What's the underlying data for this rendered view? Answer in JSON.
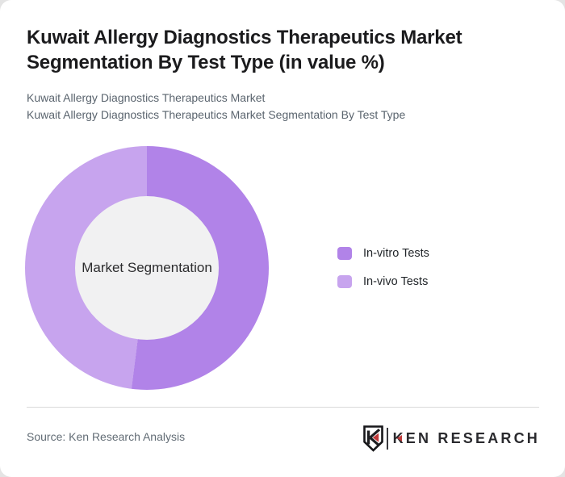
{
  "header": {
    "title": "Kuwait Allergy Diagnostics Therapeutics Market Segmentation By Test Type (in value %)",
    "subtitle_line1": "Kuwait Allergy Diagnostics Therapeutics Market",
    "subtitle_line2": "Kuwait Allergy Diagnostics Therapeutics Market Segmentation By Test Type"
  },
  "chart_data": {
    "type": "pie",
    "variant": "donut",
    "title": "Kuwait Allergy Diagnostics Therapeutics Market Segmentation By Test Type (in value %)",
    "labels": [
      "In-vitro Tests",
      "In-vivo Tests"
    ],
    "values": [
      52,
      48
    ],
    "unit": "value %",
    "colors": [
      "#b183e8",
      "#c7a4ee"
    ],
    "center_label": "Market Segmentation",
    "legend_position": "right",
    "start_angle_deg": 0,
    "data_labels_shown": false
  },
  "footer": {
    "source": "Source: Ken Research Analysis",
    "logo_text": "KEN RESEARCH",
    "logo_badge_letter": "K"
  },
  "colors": {
    "accent_red": "#c13a3a",
    "segment_invitro": "#b183e8",
    "segment_invivo": "#c7a4ee",
    "donut_hole": "#f1f1f2",
    "divider": "#d9d9d9",
    "page_background": "#e4e4e4",
    "card_background": "#ffffff"
  }
}
